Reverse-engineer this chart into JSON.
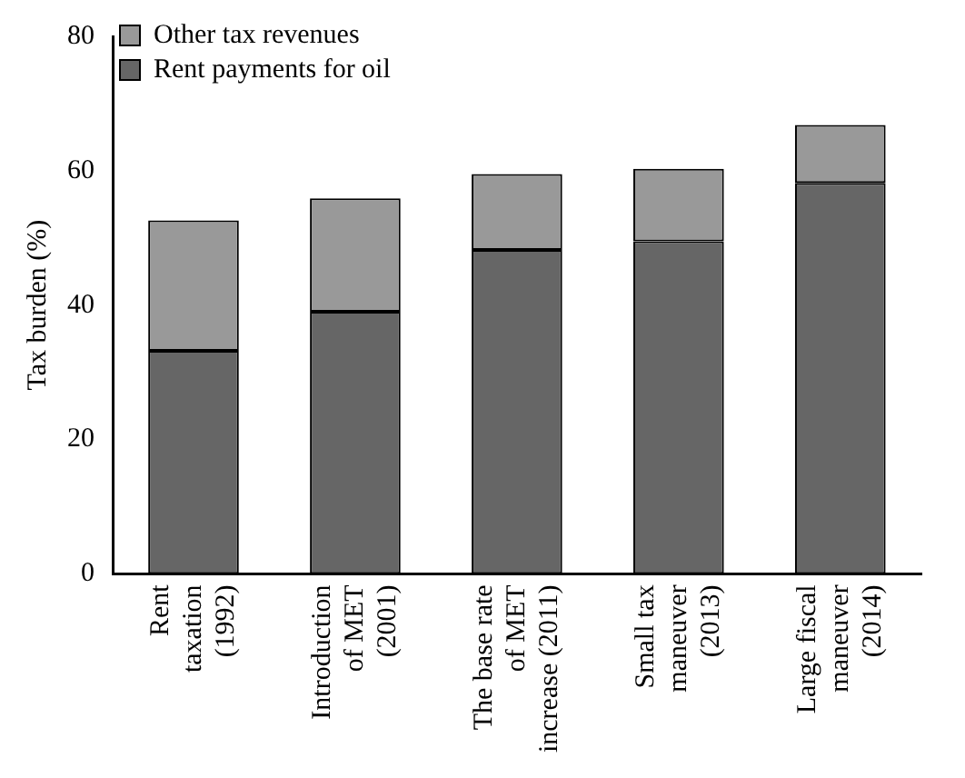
{
  "chart_data": {
    "type": "bar",
    "stacked": true,
    "ylabel": "Tax burden (%)",
    "categories": [
      "Rent\ntaxation\n(1992)",
      "Introduction\nof MET\n(2001)",
      "The base rate\nof MET\nincrease (2011)",
      "Small tax\nmaneuver\n(2013)",
      "Large fiscal\nmaneuver\n(2014)"
    ],
    "series": [
      {
        "name": "Rent payments for oil",
        "color": "#666666",
        "values": [
          33.2,
          39.0,
          48.2,
          49.5,
          58.2
        ]
      },
      {
        "name": "Other tax revenues",
        "color": "#999999",
        "values": [
          19.4,
          16.9,
          11.3,
          10.8,
          8.6
        ]
      }
    ],
    "ylim": [
      0,
      80
    ],
    "yticks": [
      0,
      20,
      40,
      60,
      80
    ],
    "grid": false,
    "legend": "top left"
  }
}
